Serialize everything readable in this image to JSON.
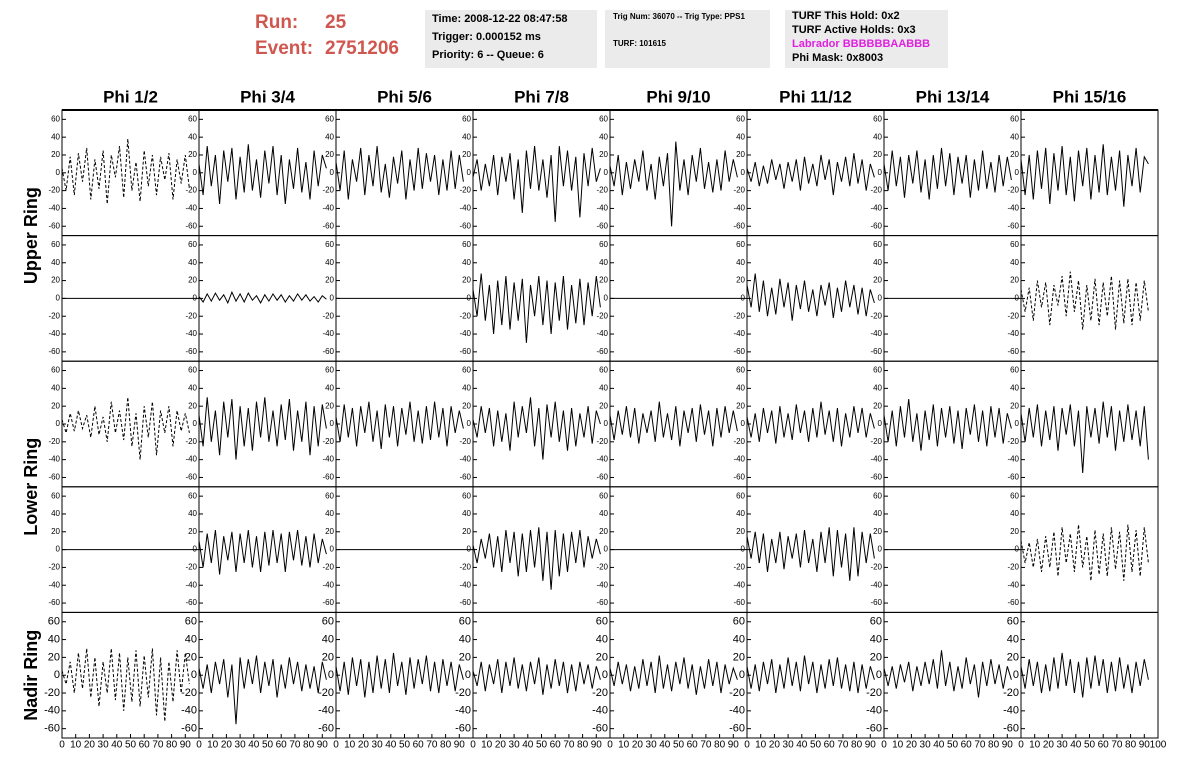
{
  "header": {
    "run_label": "Run:",
    "run": "25",
    "event_label": "Event:",
    "event": "2751206",
    "time": "Time: 2008-12-22 08:47:58",
    "trigger": "Trigger: 0.000152 ms",
    "priority": "Priority: 6 -- Queue: 6",
    "trig_num": "Trig Num: 36070 -- Trig Type: PPS1",
    "turf": "TURF: 101615",
    "turf_hold": "TURF This Hold: 0x2",
    "turf_active": "TURF Active Holds: 0x3",
    "labrador": "Labrador BBBBBBAABBB",
    "phi_mask": "Phi Mask: 0x8003"
  },
  "chart_data": {
    "type": "line",
    "columns": [
      "Phi 1/2",
      "Phi 3/4",
      "Phi 5/6",
      "Phi 7/8",
      "Phi 9/10",
      "Phi 11/12",
      "Phi 13/14",
      "Phi 15/16"
    ],
    "rows": [
      "Upper Ring",
      "Lower Ring",
      "Nadir Ring"
    ],
    "xlim": [
      0,
      100
    ],
    "xticks": [
      0,
      10,
      20,
      30,
      40,
      50,
      60,
      70,
      80,
      90,
      100
    ],
    "ylim": [
      -66,
      66
    ],
    "yticks": [
      -60,
      -40,
      -20,
      0,
      20,
      40,
      60
    ],
    "color": "#000000",
    "x": [
      0,
      3,
      6,
      9,
      12,
      15,
      18,
      21,
      24,
      27,
      30,
      33,
      36,
      39,
      42,
      45,
      48,
      51,
      54,
      57,
      60,
      63,
      66,
      69,
      72,
      75,
      78,
      81,
      84,
      87,
      90,
      93
    ],
    "panels": [
      {
        "dash": true,
        "values": [
          5,
          -20,
          18,
          -25,
          22,
          -10,
          28,
          -30,
          15,
          -18,
          25,
          -35,
          20,
          -5,
          30,
          -28,
          38,
          -20,
          12,
          -32,
          25,
          -15,
          20,
          -25,
          18,
          -8,
          22,
          -30,
          15,
          -12,
          20,
          -18
        ]
      },
      {
        "values": [
          10,
          -25,
          30,
          -15,
          20,
          -35,
          25,
          -10,
          28,
          -30,
          18,
          -22,
          32,
          -20,
          15,
          -28,
          25,
          -12,
          30,
          -25,
          20,
          -35,
          15,
          -18,
          28,
          -22,
          12,
          -30,
          25,
          -15,
          20,
          5
        ]
      },
      {
        "values": [
          12,
          -20,
          25,
          -30,
          15,
          -10,
          28,
          -25,
          20,
          -15,
          30,
          -22,
          10,
          -28,
          18,
          -12,
          25,
          -30,
          15,
          -20,
          28,
          -18,
          22,
          -10,
          20,
          -25,
          15,
          -20,
          25,
          -18,
          20,
          -10
        ]
      },
      {
        "values": [
          -5,
          15,
          -20,
          10,
          -15,
          20,
          -25,
          18,
          -10,
          22,
          -30,
          15,
          -45,
          25,
          -18,
          30,
          -20,
          15,
          -28,
          20,
          -55,
          30,
          -15,
          25,
          -20,
          18,
          -50,
          22,
          -15,
          28,
          -10,
          5
        ]
      },
      {
        "values": [
          8,
          -15,
          20,
          -25,
          12,
          -18,
          15,
          -10,
          25,
          -20,
          10,
          -30,
          18,
          -15,
          22,
          -60,
          35,
          -20,
          15,
          -25,
          20,
          -10,
          28,
          -18,
          12,
          -22,
          15,
          -20,
          25,
          -10,
          15,
          -5
        ]
      },
      {
        "values": [
          5,
          -10,
          12,
          -15,
          8,
          -12,
          15,
          -8,
          10,
          -18,
          12,
          -10,
          15,
          -20,
          18,
          -12,
          10,
          -15,
          20,
          -8,
          15,
          -25,
          12,
          -10,
          18,
          -15,
          22,
          -12,
          15,
          -20,
          10,
          -5
        ]
      },
      {
        "values": [
          10,
          -20,
          25,
          -15,
          18,
          -28,
          20,
          -12,
          25,
          -22,
          15,
          -30,
          20,
          -18,
          28,
          -15,
          22,
          -25,
          18,
          -12,
          20,
          -28,
          15,
          -20,
          25,
          -18,
          12,
          -22,
          20,
          -15,
          18,
          -8
        ]
      },
      {
        "values": [
          15,
          -25,
          20,
          -30,
          25,
          -18,
          28,
          -35,
          22,
          -20,
          30,
          -25,
          18,
          -32,
          25,
          -15,
          28,
          -30,
          20,
          -22,
          32,
          -25,
          18,
          -20,
          25,
          -38,
          20,
          -15,
          28,
          -22,
          18,
          10
        ]
      },
      {
        "x": [
          0,
          100
        ],
        "values": [
          0,
          0
        ]
      },
      {
        "values": [
          2,
          -4,
          5,
          -3,
          6,
          -2,
          4,
          -5,
          7,
          -3,
          5,
          -4,
          6,
          -2,
          3,
          -5,
          4,
          -3,
          5,
          -2,
          4,
          -4,
          3,
          -3,
          5,
          -2,
          4,
          -3,
          2,
          -4,
          3,
          -1
        ]
      },
      {
        "x": [
          0,
          100
        ],
        "values": [
          0,
          0
        ]
      },
      {
        "values": [
          10,
          -20,
          28,
          -25,
          15,
          -40,
          20,
          -30,
          25,
          -35,
          18,
          -25,
          22,
          -50,
          15,
          -20,
          25,
          -30,
          20,
          -40,
          18,
          -25,
          25,
          -35,
          15,
          -28,
          22,
          -30,
          18,
          -20,
          25,
          -10
        ]
      },
      {
        "x": [
          0,
          100
        ],
        "values": [
          0,
          0
        ]
      },
      {
        "values": [
          15,
          -10,
          28,
          -15,
          20,
          -20,
          12,
          -18,
          22,
          -10,
          18,
          -25,
          15,
          -12,
          20,
          -15,
          10,
          -20,
          15,
          -8,
          18,
          -22,
          12,
          -15,
          20,
          -10,
          15,
          -18,
          12,
          -20,
          10,
          -5
        ]
      },
      {
        "x": [
          0,
          100
        ],
        "values": [
          0,
          0
        ]
      },
      {
        "dash": true,
        "values": [
          10,
          -15,
          12,
          -25,
          20,
          -10,
          18,
          -30,
          15,
          -8,
          25,
          -20,
          30,
          -15,
          20,
          -35,
          15,
          -25,
          22,
          -30,
          18,
          -20,
          25,
          -35,
          20,
          -28,
          22,
          -30,
          18,
          -25,
          20,
          -15
        ]
      },
      {
        "dash": true,
        "values": [
          5,
          -10,
          12,
          -8,
          15,
          -5,
          10,
          -15,
          20,
          -12,
          8,
          -20,
          25,
          -10,
          15,
          -18,
          30,
          -25,
          12,
          -40,
          20,
          -15,
          25,
          -35,
          15,
          -10,
          20,
          -25,
          15,
          -8,
          12,
          -10
        ]
      },
      {
        "values": [
          10,
          -25,
          30,
          -20,
          15,
          -35,
          25,
          -15,
          28,
          -40,
          20,
          -25,
          18,
          -30,
          25,
          -15,
          30,
          -20,
          15,
          -25,
          22,
          -18,
          28,
          -30,
          15,
          -20,
          25,
          -35,
          20,
          -25,
          22,
          -5
        ]
      },
      {
        "values": [
          8,
          -20,
          22,
          -15,
          18,
          -25,
          20,
          -10,
          25,
          -20,
          15,
          -28,
          22,
          -15,
          20,
          -25,
          18,
          -12,
          25,
          -20,
          15,
          -22,
          20,
          -18,
          25,
          -15,
          18,
          -25,
          20,
          -10,
          15,
          -5
        ]
      },
      {
        "values": [
          5,
          -15,
          20,
          -10,
          18,
          -25,
          15,
          -20,
          12,
          -30,
          25,
          -15,
          20,
          -10,
          30,
          -25,
          18,
          -40,
          22,
          -15,
          25,
          -20,
          15,
          -30,
          18,
          -25,
          12,
          -15,
          20,
          -22,
          15,
          0
        ]
      },
      {
        "values": [
          10,
          -18,
          15,
          -12,
          20,
          -15,
          18,
          -22,
          12,
          -10,
          15,
          -20,
          25,
          -15,
          12,
          -18,
          20,
          -25,
          15,
          -10,
          18,
          -20,
          22,
          -12,
          15,
          -25,
          18,
          -15,
          20,
          -10,
          15,
          -8
        ]
      },
      {
        "values": [
          8,
          -15,
          12,
          -20,
          18,
          -10,
          15,
          -22,
          20,
          -15,
          12,
          -18,
          22,
          -10,
          15,
          -20,
          18,
          -15,
          25,
          -12,
          15,
          -20,
          18,
          -25,
          12,
          -15,
          20,
          -10,
          18,
          -15,
          12,
          -5
        ]
      },
      {
        "values": [
          10,
          -20,
          15,
          -25,
          20,
          -15,
          28,
          -20,
          12,
          -30,
          15,
          -18,
          22,
          -25,
          18,
          -15,
          20,
          -22,
          15,
          -28,
          18,
          -12,
          22,
          -20,
          15,
          -25,
          20,
          -15,
          18,
          -22,
          12,
          -5
        ]
      },
      {
        "values": [
          12,
          -20,
          18,
          -15,
          22,
          -25,
          15,
          -18,
          20,
          -30,
          18,
          -12,
          22,
          -25,
          15,
          -55,
          20,
          -15,
          18,
          -22,
          25,
          -15,
          20,
          -30,
          15,
          -20,
          22,
          -18,
          15,
          -25,
          20,
          -40
        ]
      },
      {
        "x": [
          0,
          100
        ],
        "values": [
          0,
          0
        ]
      },
      {
        "values": [
          10,
          -20,
          18,
          -15,
          22,
          -28,
          15,
          -12,
          20,
          -25,
          18,
          -15,
          22,
          -20,
          15,
          -25,
          20,
          -18,
          22,
          -15,
          18,
          -25,
          20,
          -12,
          22,
          -18,
          15,
          -20,
          18,
          -15,
          12,
          -5
        ]
      },
      {
        "x": [
          0,
          100
        ],
        "values": [
          0,
          0
        ]
      },
      {
        "values": [
          5,
          -15,
          12,
          -10,
          18,
          -20,
          15,
          -25,
          22,
          -15,
          20,
          -30,
          18,
          -25,
          22,
          -20,
          25,
          -35,
          20,
          -45,
          22,
          -30,
          18,
          -25,
          20,
          -15,
          22,
          -20,
          15,
          -10,
          12,
          -5
        ]
      },
      {
        "x": [
          0,
          100
        ],
        "values": [
          0,
          0
        ]
      },
      {
        "values": [
          15,
          -10,
          20,
          -15,
          18,
          -25,
          12,
          -15,
          20,
          -22,
          15,
          -10,
          18,
          -20,
          22,
          -15,
          12,
          -25,
          20,
          -15,
          25,
          -30,
          22,
          -20,
          18,
          -35,
          25,
          -30,
          20,
          -15,
          18,
          -10
        ]
      },
      {
        "x": [
          0,
          100
        ],
        "values": [
          0,
          0
        ]
      },
      {
        "dash": true,
        "values": [
          10,
          -15,
          8,
          -20,
          12,
          -25,
          15,
          -20,
          20,
          -30,
          25,
          -15,
          18,
          -25,
          28,
          -20,
          15,
          -35,
          22,
          -28,
          18,
          -30,
          25,
          -22,
          20,
          -35,
          28,
          -25,
          22,
          -30,
          25,
          -15
        ]
      },
      {
        "dash": true,
        "values": [
          5,
          -10,
          15,
          -20,
          25,
          -15,
          30,
          -25,
          20,
          -35,
          15,
          -20,
          30,
          -28,
          25,
          -40,
          20,
          -30,
          28,
          -35,
          22,
          -25,
          30,
          -45,
          20,
          -52,
          15,
          -30,
          28,
          -20,
          25,
          -10
        ]
      },
      {
        "values": [
          8,
          -15,
          12,
          -20,
          15,
          -10,
          18,
          -25,
          12,
          -55,
          20,
          -15,
          18,
          -10,
          22,
          -20,
          15,
          -12,
          18,
          -25,
          12,
          -15,
          20,
          -10,
          15,
          -18,
          12,
          -15,
          10,
          -20,
          15,
          -5
        ]
      },
      {
        "values": [
          10,
          -18,
          15,
          -22,
          20,
          -12,
          18,
          -25,
          15,
          -20,
          22,
          -15,
          18,
          -20,
          25,
          -12,
          15,
          -22,
          20,
          -15,
          18,
          -10,
          22,
          -18,
          15,
          -20,
          18,
          -12,
          15,
          -18,
          12,
          -5
        ]
      },
      {
        "values": [
          5,
          -12,
          15,
          -18,
          12,
          -10,
          18,
          -20,
          15,
          -12,
          20,
          -15,
          12,
          -18,
          15,
          -10,
          20,
          -22,
          12,
          -15,
          18,
          -12,
          15,
          -20,
          12,
          -18,
          15,
          -10,
          12,
          -15,
          10,
          -5
        ]
      },
      {
        "values": [
          8,
          -12,
          15,
          -10,
          12,
          -18,
          10,
          -15,
          18,
          -12,
          15,
          -20,
          22,
          -15,
          12,
          -18,
          15,
          -10,
          20,
          -15,
          12,
          -22,
          10,
          -15,
          18,
          -12,
          15,
          -20,
          12,
          -10,
          8,
          -5
        ]
      },
      {
        "values": [
          10,
          -15,
          12,
          -18,
          15,
          -10,
          18,
          -20,
          12,
          -15,
          20,
          -12,
          15,
          -18,
          22,
          -10,
          15,
          -20,
          12,
          -15,
          18,
          -12,
          20,
          -15,
          12,
          -18,
          15,
          -20,
          12,
          -15,
          10,
          -5
        ]
      },
      {
        "values": [
          8,
          -12,
          10,
          -15,
          12,
          -8,
          15,
          -18,
          10,
          -12,
          15,
          -10,
          18,
          -15,
          28,
          -12,
          15,
          -18,
          10,
          -15,
          20,
          -10,
          12,
          -25,
          15,
          -12,
          18,
          -10,
          12,
          -15,
          10,
          -5
        ]
      },
      {
        "values": [
          10,
          -15,
          18,
          -12,
          15,
          -20,
          12,
          -18,
          20,
          -15,
          25,
          -12,
          18,
          -20,
          15,
          -25,
          20,
          -15,
          22,
          -12,
          18,
          -20,
          15,
          -18,
          20,
          -15,
          12,
          -20,
          15,
          -12,
          18,
          -5
        ]
      }
    ]
  }
}
